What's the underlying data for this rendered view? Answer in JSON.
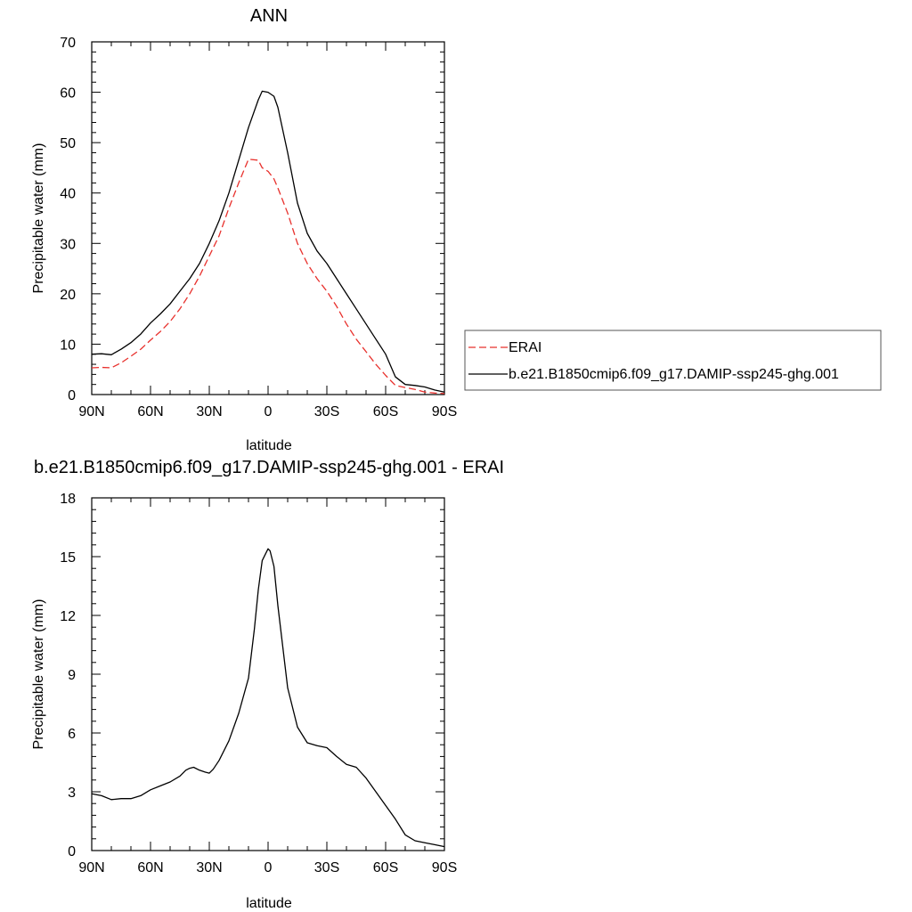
{
  "x_ticks": [
    {
      "value": 90,
      "label": "90N"
    },
    {
      "value": 60,
      "label": "60N"
    },
    {
      "value": 30,
      "label": "30N"
    },
    {
      "value": 0,
      "label": "0"
    },
    {
      "value": -30,
      "label": "30S"
    },
    {
      "value": -60,
      "label": "60S"
    },
    {
      "value": -90,
      "label": "90S"
    }
  ],
  "chart_data": [
    {
      "type": "line",
      "title": "ANN",
      "xlabel": "latitude",
      "ylabel": "Precipitable water (mm)",
      "xlim": [
        90,
        -90
      ],
      "ylim": [
        0,
        70
      ],
      "y_ticks": [
        0,
        10,
        20,
        30,
        40,
        50,
        60,
        70
      ],
      "legend_placement": "right",
      "series": [
        {
          "name": "ERAI",
          "color": "#e8302c",
          "dash": "dashed",
          "x": [
            90,
            85,
            80,
            75,
            70,
            65,
            60,
            55,
            50,
            45,
            40,
            35,
            30,
            25,
            20,
            15,
            10,
            5,
            3,
            0,
            -3,
            -5,
            -10,
            -15,
            -20,
            -25,
            -30,
            -35,
            -40,
            -45,
            -50,
            -55,
            -60,
            -65,
            -70,
            -75,
            -80,
            -85,
            -90
          ],
          "y": [
            5.3,
            5.4,
            5.3,
            6.3,
            7.6,
            9.0,
            10.8,
            12.5,
            14.5,
            17.0,
            20.0,
            23.5,
            27.5,
            31.5,
            37.0,
            42.0,
            46.7,
            46.5,
            45.0,
            44.3,
            42.8,
            41.0,
            36.0,
            30.0,
            26.0,
            23.0,
            20.5,
            17.5,
            14.0,
            11.0,
            8.5,
            6.0,
            3.8,
            1.8,
            1.4,
            1.0,
            0.5,
            0.3,
            0.2
          ]
        },
        {
          "name": "b.e21.B1850cmip6.f09_g17.DAMIP-ssp245-ghg.001",
          "color": "#000000",
          "dash": "solid",
          "x": [
            90,
            85,
            80,
            75,
            70,
            65,
            60,
            55,
            50,
            45,
            40,
            35,
            30,
            25,
            20,
            15,
            10,
            5,
            3,
            0,
            -3,
            -5,
            -10,
            -15,
            -20,
            -25,
            -30,
            -35,
            -40,
            -45,
            -50,
            -55,
            -60,
            -65,
            -70,
            -75,
            -80,
            -85,
            -90
          ],
          "y": [
            8.0,
            8.1,
            7.9,
            9.0,
            10.3,
            12.0,
            14.2,
            16.0,
            18.0,
            20.5,
            23.0,
            26.0,
            30.0,
            34.5,
            40.0,
            46.5,
            53.0,
            58.5,
            60.2,
            60.0,
            59.2,
            57.0,
            48.0,
            38.0,
            32.0,
            28.5,
            26.0,
            23.0,
            20.0,
            17.0,
            14.0,
            11.0,
            8.0,
            3.5,
            2.0,
            1.8,
            1.5,
            0.9,
            0.5
          ]
        }
      ]
    },
    {
      "type": "line",
      "title": "b.e21.B1850cmip6.f09_g17.DAMIP-ssp245-ghg.001 - ERAI",
      "xlabel": "latitude",
      "ylabel": "Precipitable water (mm)",
      "xlim": [
        90,
        -90
      ],
      "ylim": [
        0,
        18
      ],
      "y_ticks": [
        0,
        3,
        6,
        9,
        12,
        15,
        18
      ],
      "series": [
        {
          "color": "#000000",
          "dash": "solid",
          "x": [
            90,
            85,
            80,
            75,
            70,
            65,
            60,
            55,
            50,
            45,
            42,
            40,
            38,
            35,
            32,
            30,
            28,
            25,
            20,
            15,
            10,
            7,
            5,
            3,
            1,
            0,
            -1,
            -3,
            -5,
            -10,
            -15,
            -20,
            -25,
            -30,
            -35,
            -40,
            -45,
            -50,
            -55,
            -60,
            -65,
            -70,
            -75,
            -80,
            -85,
            -90
          ],
          "y": [
            2.9,
            2.8,
            2.6,
            2.65,
            2.65,
            2.8,
            3.1,
            3.3,
            3.5,
            3.8,
            4.1,
            4.2,
            4.25,
            4.1,
            4.0,
            3.95,
            4.15,
            4.6,
            5.6,
            7.0,
            8.8,
            11.3,
            13.3,
            14.8,
            15.2,
            15.4,
            15.3,
            14.5,
            12.5,
            8.3,
            6.3,
            5.5,
            5.35,
            5.25,
            4.8,
            4.4,
            4.25,
            3.7,
            3.0,
            2.3,
            1.6,
            0.8,
            0.5,
            0.4,
            0.3,
            0.2
          ]
        }
      ]
    }
  ]
}
